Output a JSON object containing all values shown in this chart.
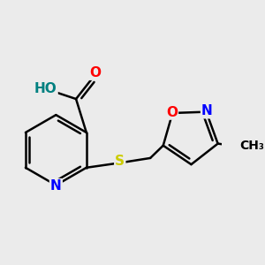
{
  "bg_color": "#ebebeb",
  "bond_color": "#000000",
  "bond_width": 1.8,
  "atom_colors": {
    "C": "#000000",
    "N": "#0000ff",
    "O": "#ff0000",
    "S": "#cccc00",
    "H": "#008080"
  },
  "font_size": 11
}
